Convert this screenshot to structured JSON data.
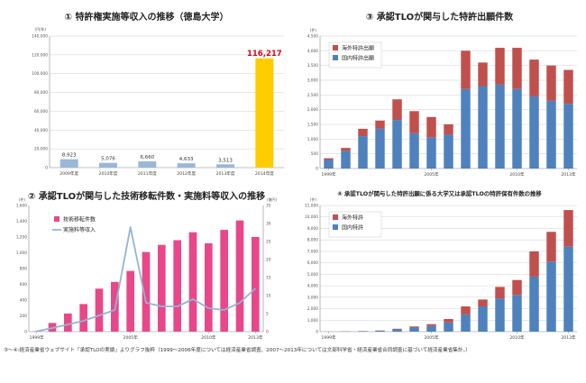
{
  "chart_data": [
    {
      "id": "c1",
      "type": "bar",
      "title": "① 特許権実施等収入の推移（徳島大学）",
      "unit_label": "(円/年)",
      "categories": [
        "2009年度",
        "2010年度",
        "2011年度",
        "2012年度",
        "2013年度",
        "2014年度"
      ],
      "values": [
        8923,
        5076,
        6660,
        4633,
        3513,
        116217
      ],
      "value_labels": [
        "8,923",
        "5,076",
        "6,660",
        "4,633",
        "3,513",
        "116,217"
      ],
      "bar_colors": [
        "#9bb7d8",
        "#9bb7d8",
        "#9bb7d8",
        "#9bb7d8",
        "#9bb7d8",
        "#ffcc00"
      ],
      "highlight_label_color": "#e60012",
      "ylim": [
        0,
        140000
      ],
      "yticks": [
        0,
        20000,
        40000,
        60000,
        80000,
        100000,
        120000,
        140000
      ],
      "ytick_labels": [
        "0",
        "20,000",
        "40,000",
        "60,000",
        "80,000",
        "100,000",
        "120,000",
        "140,000"
      ],
      "grid": true
    },
    {
      "id": "c2",
      "type": "bar",
      "stacked": true,
      "title": "③ 承認TLOが関与した特許出願件数",
      "unit_label": "(件)",
      "categories": [
        1999,
        2000,
        2001,
        2002,
        2003,
        2004,
        2005,
        2006,
        2007,
        2008,
        2009,
        2010,
        2011,
        2012,
        2013
      ],
      "x_tick_labels": [
        {
          "at": 1999,
          "label": "1999年"
        },
        {
          "at": 2005,
          "label": "2005年"
        },
        {
          "at": 2010,
          "label": "2010年"
        },
        {
          "at": 2013,
          "label": "2013年"
        }
      ],
      "series": [
        {
          "name": "国内特許出願",
          "color": "#4f81bd",
          "values": [
            290,
            600,
            1100,
            1350,
            1650,
            1200,
            1050,
            1150,
            2700,
            2800,
            2850,
            2700,
            2450,
            2300,
            2200
          ]
        },
        {
          "name": "海外特許出願",
          "color": "#c0504d",
          "values": [
            60,
            100,
            250,
            280,
            700,
            750,
            700,
            350,
            1300,
            800,
            1250,
            1400,
            1250,
            1200,
            1150
          ]
        }
      ],
      "legend_order": [
        "海外特許出願",
        "国内特許出願"
      ],
      "legend_position": "top-left",
      "ylim": [
        0,
        4500
      ],
      "yticks": [
        0,
        500,
        1000,
        1500,
        2000,
        2500,
        3000,
        3500,
        4000,
        4500
      ],
      "ytick_labels": [
        "0",
        "500",
        "1,000",
        "1,500",
        "2,000",
        "2,500",
        "3,000",
        "3,500",
        "4,000",
        "4,500"
      ],
      "grid": true
    },
    {
      "id": "c3",
      "type": "bar",
      "combo": true,
      "title": "② 承認TLOが関与した技術移転件数・実施料等収入の推移",
      "left_unit_label": "(件)",
      "right_unit_label": "(億円)",
      "categories": [
        1999,
        2000,
        2001,
        2002,
        2003,
        2004,
        2005,
        2006,
        2007,
        2008,
        2009,
        2010,
        2011,
        2012,
        2013
      ],
      "x_tick_labels": [
        {
          "at": 1999,
          "label": "1999年"
        },
        {
          "at": 2005,
          "label": "2005年"
        },
        {
          "at": 2010,
          "label": "2010年"
        },
        {
          "at": 2013,
          "label": "2013年"
        }
      ],
      "series": [
        {
          "name": "技術移転件数",
          "type": "bar",
          "axis": "left",
          "color": "#e8488a",
          "values": [
            5,
            110,
            230,
            350,
            545,
            630,
            770,
            1010,
            1100,
            1160,
            1260,
            1120,
            1290,
            1410,
            1200
          ]
        },
        {
          "name": "実施料等収入",
          "type": "line",
          "axis": "right",
          "color": "#95b3d7",
          "values": [
            0.1,
            1.0,
            2.0,
            3.0,
            4.5,
            6.0,
            29.0,
            8.0,
            7.0,
            7.0,
            9.0,
            6.5,
            6.0,
            8.0,
            12.0
          ]
        }
      ],
      "legend_position": "top-left",
      "ylim": [
        0,
        1600
      ],
      "yticks": [
        0,
        200,
        400,
        600,
        800,
        1000,
        1200,
        1400,
        1600
      ],
      "ytick_labels": [
        "0",
        "200",
        "400",
        "600",
        "800",
        "1,000",
        "1,200",
        "1,400",
        "1,600"
      ],
      "y2lim": [
        0,
        35
      ],
      "y2ticks": [
        0,
        5,
        10,
        15,
        20,
        25,
        30,
        35
      ],
      "y2tick_labels": [
        "0",
        "5",
        "10",
        "15",
        "20",
        "25",
        "30",
        "35"
      ],
      "grid": false
    },
    {
      "id": "c4",
      "type": "bar",
      "stacked": true,
      "title": "④ 承認TLOが関与した特許出願に係る大学又は承認TLOの特許保有件数の推移",
      "unit_label": "(件)",
      "categories": [
        1999,
        2000,
        2001,
        2002,
        2003,
        2004,
        2005,
        2006,
        2007,
        2008,
        2009,
        2010,
        2011,
        2012,
        2013
      ],
      "x_tick_labels": [
        {
          "at": 1999,
          "label": "1999年"
        },
        {
          "at": 2005,
          "label": "2005年"
        },
        {
          "at": 2010,
          "label": "2010年"
        },
        {
          "at": 2013,
          "label": "2013年"
        }
      ],
      "series": [
        {
          "name": "国内特許",
          "color": "#4f81bd",
          "values": [
            5,
            20,
            40,
            80,
            200,
            350,
            500,
            800,
            1500,
            2200,
            2900,
            3200,
            4800,
            6100,
            7400
          ]
        },
        {
          "name": "海外特許",
          "color": "#c0504d",
          "values": [
            0,
            5,
            10,
            20,
            50,
            100,
            150,
            300,
            700,
            600,
            1000,
            1300,
            2200,
            2600,
            3200
          ]
        }
      ],
      "legend_order": [
        "海外特許",
        "国内特許"
      ],
      "legend_position": "top-left",
      "ylim": [
        0,
        11000
      ],
      "yticks": [
        0,
        1000,
        2000,
        3000,
        4000,
        5000,
        6000,
        7000,
        8000,
        9000,
        10000,
        11000
      ],
      "ytick_labels": [
        "0",
        "1,000",
        "2,000",
        "3,000",
        "4,000",
        "5,000",
        "6,000",
        "7,000",
        "8,000",
        "9,000",
        "10,000",
        "11,000"
      ],
      "grid": true
    }
  ],
  "footnote": "③～④:経済産業省ウェブサイト「承認TLOの実績」よりグラフ抜粋（1999～2006年度については経済産業省調査、2007～2013年については文部科学省・経済産業省合同調査に基づいて経済産業省集計。）"
}
